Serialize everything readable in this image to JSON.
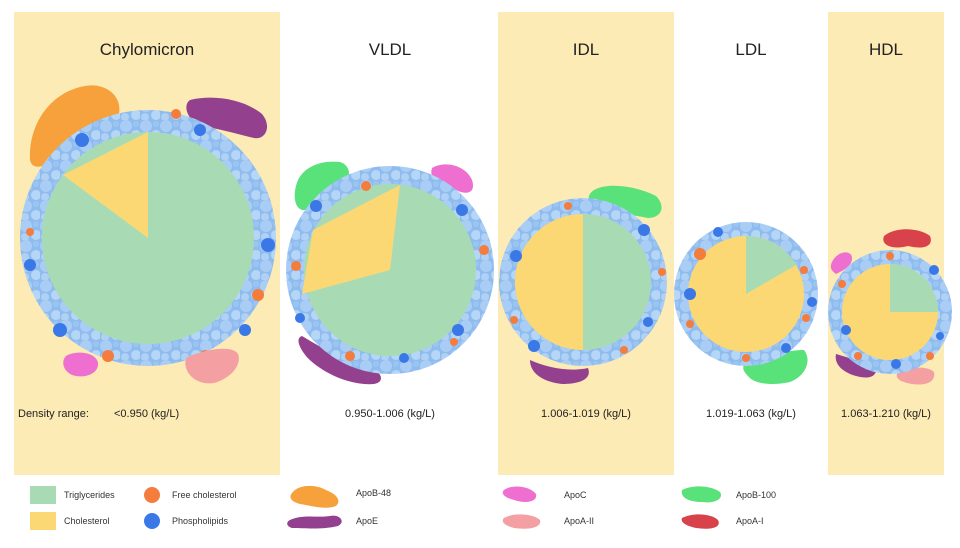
{
  "columns": [
    {
      "title": "Chylomicron",
      "density_prefix": "Density range:",
      "density": "<0.950 (kg/L)"
    },
    {
      "title": "VLDL",
      "density": "0.950-1.006 (kg/L)"
    },
    {
      "title": "IDL",
      "density": "1.006-1.019 (kg/L)"
    },
    {
      "title": "LDL",
      "density": "1.019-1.063 (kg/L)"
    },
    {
      "title": "HDL",
      "density": "1.063-1.210 (kg/L)"
    }
  ],
  "legend": [
    {
      "label": "Triglycerides",
      "color": "#a8dbb4",
      "shape": "square"
    },
    {
      "label": "Cholesterol",
      "color": "#fcd875",
      "shape": "square"
    },
    {
      "label": "Free cholesterol",
      "color": "#f47c3c",
      "shape": "dot"
    },
    {
      "label": "Phospholipids",
      "color": "#3b78e7",
      "shape": "dot"
    },
    {
      "label": "ApoB-48",
      "color": "#f7a13d",
      "shape": "blob"
    },
    {
      "label": "ApoE",
      "color": "#93418f",
      "shape": "blob"
    },
    {
      "label": "ApoC",
      "color": "#ee6fd0",
      "shape": "blob"
    },
    {
      "label": "ApoA-II",
      "color": "#f4a0a2",
      "shape": "blob"
    },
    {
      "label": "ApoB-100",
      "color": "#5ae27a",
      "shape": "blob"
    },
    {
      "label": "ApoA-I",
      "color": "#d8434b",
      "shape": "blob"
    }
  ]
}
